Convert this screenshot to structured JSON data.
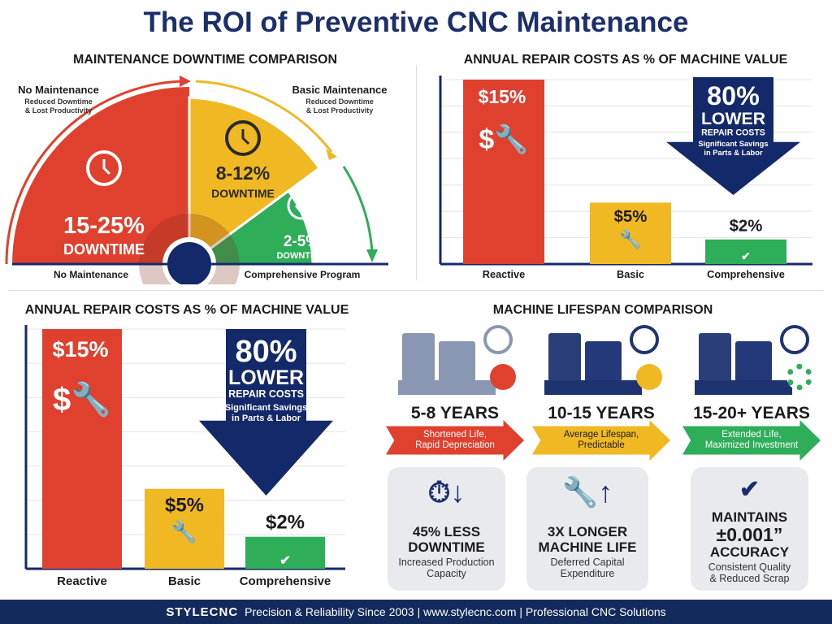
{
  "title": "The ROI of Preventive CNC Maintenance",
  "colors": {
    "navy": "#1b2f6b",
    "red": "#e0412f",
    "yellow": "#f0b823",
    "green": "#2fae5a"
  },
  "downtime": {
    "heading": "MAINTENANCE DOWNTIME COMPARISON",
    "left_callout": {
      "title": "No Maintenance",
      "sub1": "Reduced Downtime",
      "sub2": "& Lost Productivity"
    },
    "right_callout": {
      "title": "Basic Maintenance",
      "sub1": "Reduced Downtime",
      "sub2": "& Lost Productivity"
    },
    "axis_left": "No Maintenance",
    "axis_right": "Comprehensive Program"
  },
  "repair_top": {
    "heading": "ANNUAL REPAIR COSTS AS % OF MACHINE VALUE",
    "arrow_big": "80%",
    "arrow_mid": "LOWER",
    "arrow_small": "REPAIR COSTS",
    "arrow_note1": "Significant Savings",
    "arrow_note2": "in Parts & Labor"
  },
  "repair_bottom": {
    "heading": "ANNUAL REPAIR COSTS AS % OF MACHINE VALUE",
    "arrow_big": "80%",
    "arrow_mid": "LOWER",
    "arrow_small": "REPAIR COSTS",
    "arrow_note1": "Significant Savings",
    "arrow_note2": "in Parts & Labor"
  },
  "chart_data": [
    {
      "type": "pie",
      "title": "MAINTENANCE DOWNTIME COMPARISON",
      "categories": [
        "No Maintenance",
        "Basic Maintenance",
        "Comprehensive Program"
      ],
      "labels": [
        "15-25%",
        "8-12%",
        "2-5%"
      ],
      "sublabel": "DOWNTIME",
      "values_range": [
        [
          15,
          25
        ],
        [
          8,
          12
        ],
        [
          2,
          5
        ]
      ]
    },
    {
      "type": "bar",
      "title": "ANNUAL REPAIR COSTS AS % OF MACHINE VALUE",
      "categories": [
        "Reactive",
        "Basic",
        "Comprehensive"
      ],
      "values": [
        15,
        5,
        2
      ],
      "labels": [
        "$15%",
        "$5%",
        "$2%"
      ],
      "ylim": [
        0,
        15
      ],
      "grid": true
    },
    {
      "type": "bar",
      "title": "ANNUAL REPAIR COSTS AS % OF MACHINE VALUE",
      "categories": [
        "Reactive",
        "Basic",
        "Comprehensive"
      ],
      "values": [
        15,
        5,
        2
      ],
      "labels": [
        "$15%",
        "$5%",
        "$2%"
      ],
      "ylim": [
        0,
        15
      ],
      "grid": true
    }
  ],
  "lifespan": {
    "heading": "MACHINE LIFESPAN COMPARISON",
    "items": [
      {
        "years": "5-8 YEARS",
        "line1": "Shortened Life,",
        "line2": "Rapid Depreciation",
        "color": "#e0412f"
      },
      {
        "years": "10-15 YEARS",
        "line1": "Average Lifespan,",
        "line2": "Predictable",
        "color": "#f0b823"
      },
      {
        "years": "15-20+ YEARS",
        "line1": "Extended Life,",
        "line2": "Maximized Investment",
        "color": "#2fae5a"
      }
    ],
    "cards": [
      {
        "h1": "45% LESS",
        "h2": "DOWNTIME",
        "s1": "Increased Production",
        "s2": "Capacity"
      },
      {
        "h1": "3X LONGER",
        "h2": "MACHINE LIFE",
        "s1": "Deferred Capital",
        "s2": "Expenditure"
      },
      {
        "h0": "MAINTAINS",
        "h1": "±0.001”",
        "h2": "ACCURACY",
        "s1": "Consistent Quality",
        "s2": "& Reduced Scrap"
      }
    ]
  },
  "footer": {
    "logo": "STYLECNC",
    "tagline": "Precision & Reliability Since 2003 | www.stylecnc.com | Professional CNC Solutions"
  }
}
